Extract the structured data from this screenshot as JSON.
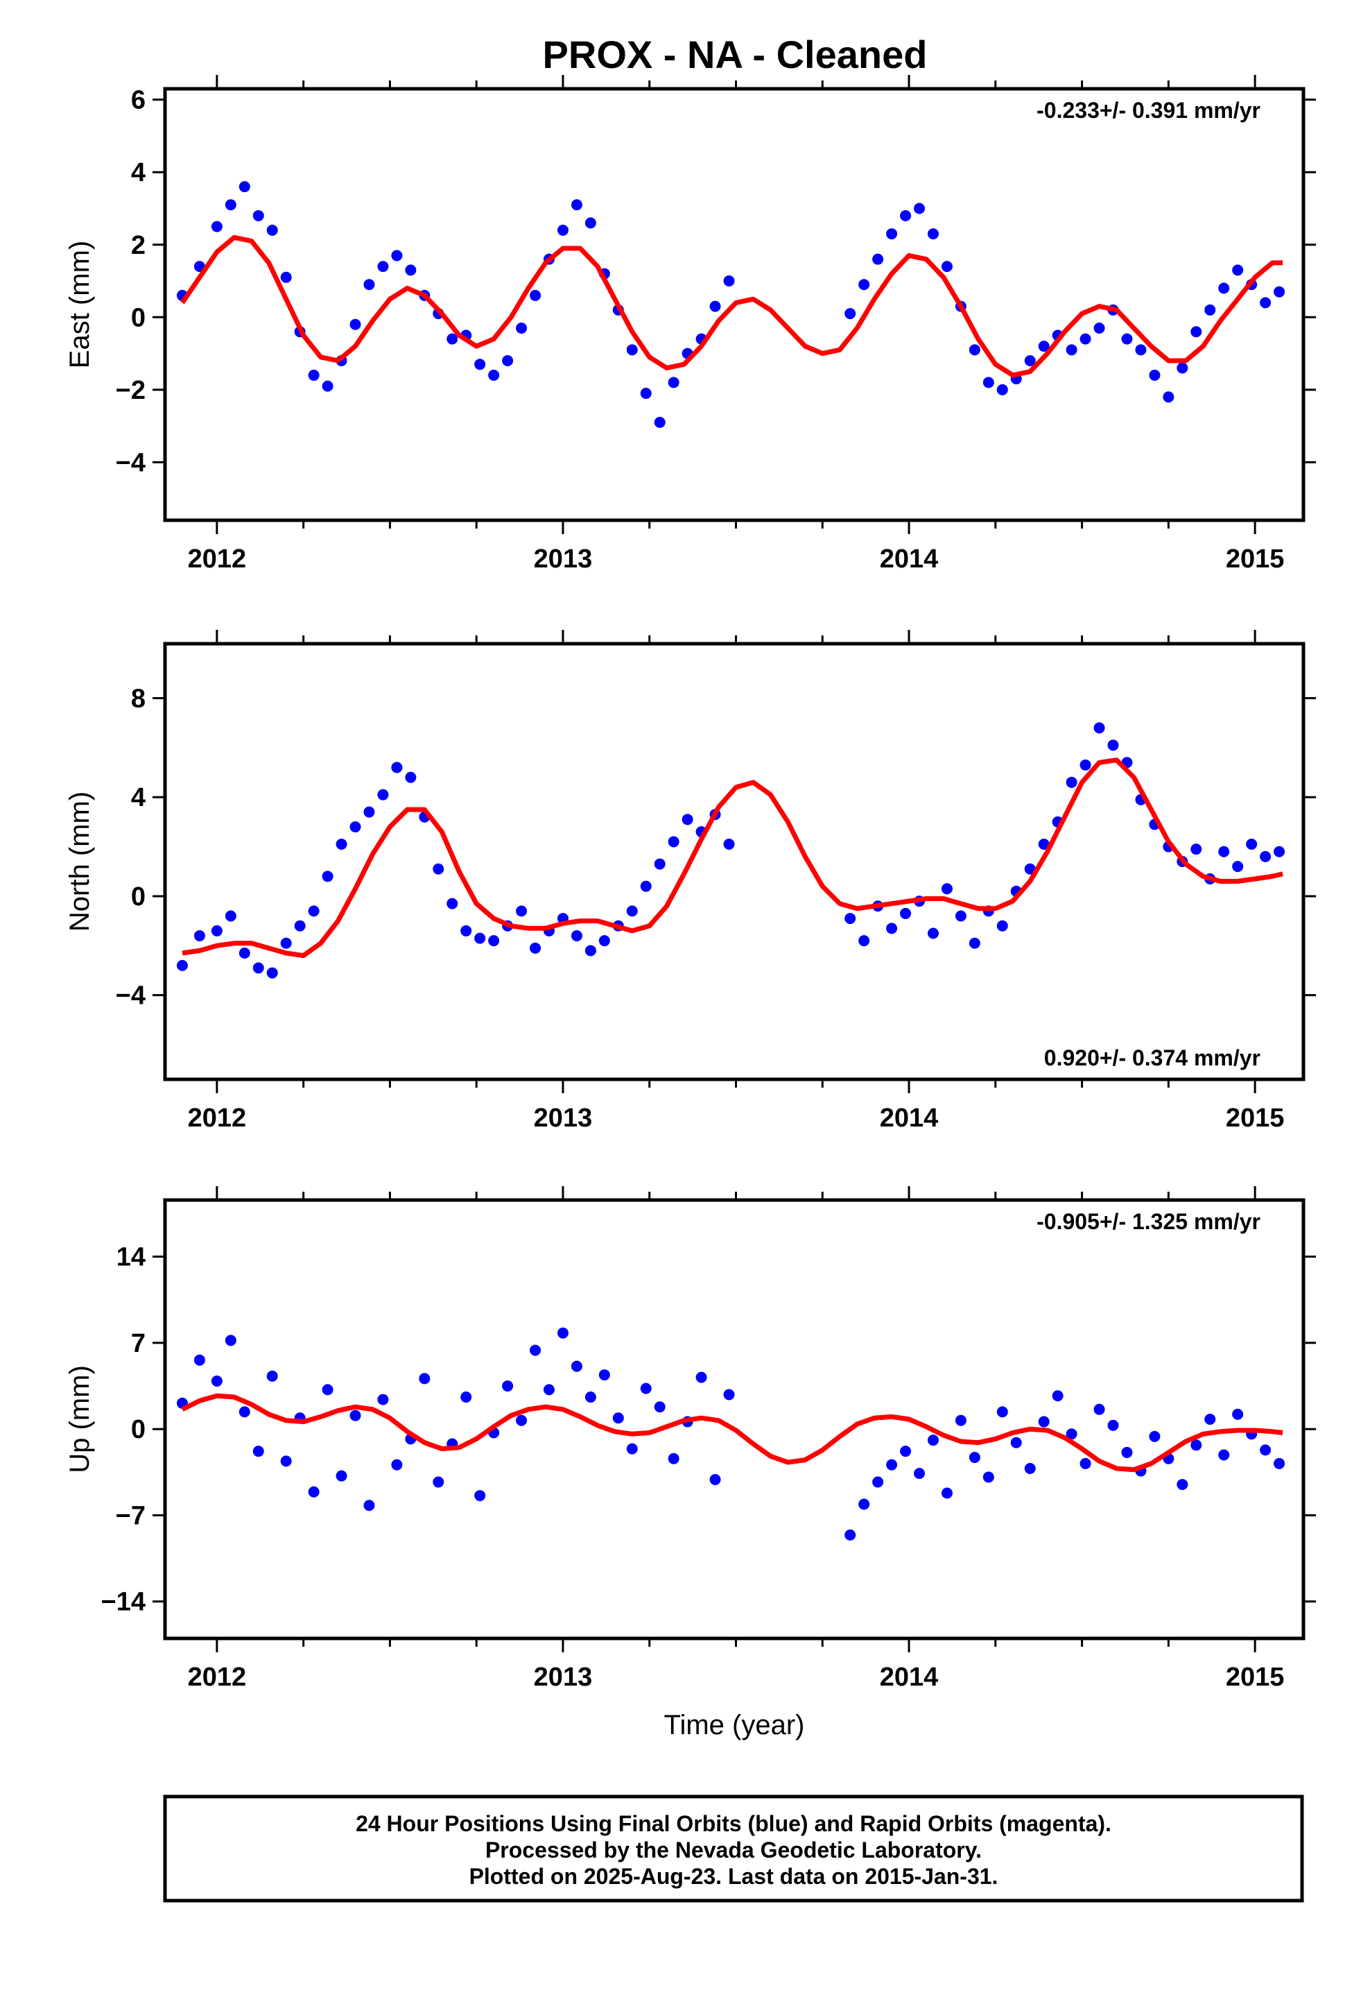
{
  "title": "PROX  - NA - Cleaned",
  "footer": {
    "line1": "24 Hour Positions Using Final Orbits (blue) and Rapid Orbits (magenta).",
    "line2": "Processed by the Nevada Geodetic Laboratory.",
    "line3": "Plotted on 2025-Aug-23. Last data on 2015-Jan-31."
  },
  "colors": {
    "points": "#0000ff",
    "fit": "#ff0000",
    "frame": "#000000"
  },
  "chart_data": [
    {
      "type": "scatter",
      "ylabel": "East (mm)",
      "xlabel": "",
      "rate": "-0.233+/- 0.391 mm/yr",
      "rate_position": "top-right",
      "xlim": [
        2011.85,
        2015.14
      ],
      "ylim": [
        -5.6,
        6.3
      ],
      "xticks": [
        2012,
        2013,
        2014,
        2015
      ],
      "yticks": [
        -4,
        -2,
        0,
        2,
        4,
        6
      ],
      "series": [
        {
          "kind": "points",
          "x": [
            2011.9,
            2011.95,
            2012.0,
            2012.04,
            2012.08,
            2012.12,
            2012.16,
            2012.2,
            2012.24,
            2012.28,
            2012.32,
            2012.36,
            2012.4,
            2012.44,
            2012.48,
            2012.52,
            2012.56,
            2012.6,
            2012.64,
            2012.68,
            2012.72,
            2012.76,
            2012.8,
            2012.84,
            2012.88,
            2012.92,
            2012.96,
            2013.0,
            2013.04,
            2013.08,
            2013.12,
            2013.16,
            2013.2,
            2013.24,
            2013.28,
            2013.32,
            2013.36,
            2013.4,
            2013.44,
            2013.48,
            2013.83,
            2013.87,
            2013.91,
            2013.95,
            2013.99,
            2014.03,
            2014.07,
            2014.11,
            2014.15,
            2014.19,
            2014.23,
            2014.27,
            2014.31,
            2014.35,
            2014.39,
            2014.43,
            2014.47,
            2014.51,
            2014.55,
            2014.59,
            2014.63,
            2014.67,
            2014.71,
            2014.75,
            2014.79,
            2014.83,
            2014.87,
            2014.91,
            2014.95,
            2014.99,
            2015.03,
            2015.07
          ],
          "y": [
            0.6,
            1.4,
            2.5,
            3.1,
            3.6,
            2.8,
            2.4,
            1.1,
            -0.4,
            -1.6,
            -1.9,
            -1.2,
            -0.2,
            0.9,
            1.4,
            1.7,
            1.3,
            0.6,
            0.1,
            -0.6,
            -0.5,
            -1.3,
            -1.6,
            -1.2,
            -0.3,
            0.6,
            1.6,
            2.4,
            3.1,
            2.6,
            1.2,
            0.2,
            -0.9,
            -2.1,
            -2.9,
            -1.8,
            -1.0,
            -0.6,
            0.3,
            1.0,
            0.1,
            0.9,
            1.6,
            2.3,
            2.8,
            3.0,
            2.3,
            1.4,
            0.3,
            -0.9,
            -1.8,
            -2.0,
            -1.7,
            -1.2,
            -0.8,
            -0.5,
            -0.9,
            -0.6,
            -0.3,
            0.2,
            -0.6,
            -0.9,
            -1.6,
            -2.2,
            -1.4,
            -0.4,
            0.2,
            0.8,
            1.3,
            0.9,
            0.4,
            0.7
          ]
        },
        {
          "kind": "fit",
          "x": [
            2011.9,
            2011.95,
            2012.0,
            2012.05,
            2012.1,
            2012.15,
            2012.2,
            2012.25,
            2012.3,
            2012.35,
            2012.4,
            2012.45,
            2012.5,
            2012.55,
            2012.6,
            2012.65,
            2012.7,
            2012.75,
            2012.8,
            2012.85,
            2012.9,
            2012.95,
            2013.0,
            2013.05,
            2013.1,
            2013.15,
            2013.2,
            2013.25,
            2013.3,
            2013.35,
            2013.4,
            2013.45,
            2013.5,
            2013.55,
            2013.6,
            2013.65,
            2013.7,
            2013.75,
            2013.8,
            2013.85,
            2013.9,
            2013.95,
            2014.0,
            2014.05,
            2014.1,
            2014.15,
            2014.2,
            2014.25,
            2014.3,
            2014.35,
            2014.4,
            2014.45,
            2014.5,
            2014.55,
            2014.6,
            2014.65,
            2014.7,
            2014.75,
            2014.8,
            2014.85,
            2014.9,
            2014.95,
            2015.0,
            2015.05,
            2015.08
          ],
          "y": [
            0.4,
            1.1,
            1.8,
            2.2,
            2.1,
            1.5,
            0.5,
            -0.5,
            -1.1,
            -1.2,
            -0.8,
            -0.1,
            0.5,
            0.8,
            0.6,
            0.1,
            -0.5,
            -0.8,
            -0.6,
            0.0,
            0.8,
            1.5,
            1.9,
            1.9,
            1.4,
            0.5,
            -0.4,
            -1.1,
            -1.4,
            -1.3,
            -0.8,
            -0.1,
            0.4,
            0.5,
            0.2,
            -0.3,
            -0.8,
            -1.0,
            -0.9,
            -0.3,
            0.5,
            1.2,
            1.7,
            1.6,
            1.1,
            0.3,
            -0.6,
            -1.3,
            -1.6,
            -1.5,
            -1.0,
            -0.4,
            0.1,
            0.3,
            0.2,
            -0.3,
            -0.8,
            -1.2,
            -1.2,
            -0.8,
            -0.1,
            0.5,
            1.1,
            1.5,
            1.5
          ]
        }
      ]
    },
    {
      "type": "scatter",
      "ylabel": "North (mm)",
      "xlabel": "",
      "rate": "0.920+/- 0.374 mm/yr",
      "rate_position": "bottom-right",
      "xlim": [
        2011.85,
        2015.14
      ],
      "ylim": [
        -7.4,
        10.2
      ],
      "xticks": [
        2012,
        2013,
        2014,
        2015
      ],
      "yticks": [
        -4,
        0,
        4,
        8
      ],
      "series": [
        {
          "kind": "points",
          "x": [
            2011.9,
            2011.95,
            2012.0,
            2012.04,
            2012.08,
            2012.12,
            2012.16,
            2012.2,
            2012.24,
            2012.28,
            2012.32,
            2012.36,
            2012.4,
            2012.44,
            2012.48,
            2012.52,
            2012.56,
            2012.6,
            2012.64,
            2012.68,
            2012.72,
            2012.76,
            2012.8,
            2012.84,
            2012.88,
            2012.92,
            2012.96,
            2013.0,
            2013.04,
            2013.08,
            2013.12,
            2013.16,
            2013.2,
            2013.24,
            2013.28,
            2013.32,
            2013.36,
            2013.4,
            2013.44,
            2013.48,
            2013.83,
            2013.87,
            2013.91,
            2013.95,
            2013.99,
            2014.03,
            2014.07,
            2014.11,
            2014.15,
            2014.19,
            2014.23,
            2014.27,
            2014.31,
            2014.35,
            2014.39,
            2014.43,
            2014.47,
            2014.51,
            2014.55,
            2014.59,
            2014.63,
            2014.67,
            2014.71,
            2014.75,
            2014.79,
            2014.83,
            2014.87,
            2014.91,
            2014.95,
            2014.99,
            2015.03,
            2015.07
          ],
          "y": [
            -2.8,
            -1.6,
            -1.4,
            -0.8,
            -2.3,
            -2.9,
            -3.1,
            -1.9,
            -1.2,
            -0.6,
            0.8,
            2.1,
            2.8,
            3.4,
            4.1,
            5.2,
            4.8,
            3.2,
            1.1,
            -0.3,
            -1.4,
            -1.7,
            -1.8,
            -1.2,
            -0.6,
            -2.1,
            -1.4,
            -0.9,
            -1.6,
            -2.2,
            -1.8,
            -1.2,
            -0.6,
            0.4,
            1.3,
            2.2,
            3.1,
            2.6,
            3.3,
            2.1,
            -0.9,
            -1.8,
            -0.4,
            -1.3,
            -0.7,
            -0.2,
            -1.5,
            0.3,
            -0.8,
            -1.9,
            -0.6,
            -1.2,
            0.2,
            1.1,
            2.1,
            3.0,
            4.6,
            5.3,
            6.8,
            6.1,
            5.4,
            3.9,
            2.9,
            2.0,
            1.4,
            1.9,
            0.7,
            1.8,
            1.2,
            2.1,
            1.6,
            1.8
          ]
        },
        {
          "kind": "fit",
          "x": [
            2011.9,
            2011.95,
            2012.0,
            2012.05,
            2012.1,
            2012.15,
            2012.2,
            2012.25,
            2012.3,
            2012.35,
            2012.4,
            2012.45,
            2012.5,
            2012.55,
            2012.6,
            2012.65,
            2012.7,
            2012.75,
            2012.8,
            2012.85,
            2012.9,
            2012.95,
            2013.0,
            2013.05,
            2013.1,
            2013.15,
            2013.2,
            2013.25,
            2013.3,
            2013.35,
            2013.4,
            2013.45,
            2013.5,
            2013.55,
            2013.6,
            2013.65,
            2013.7,
            2013.75,
            2013.8,
            2013.85,
            2013.9,
            2013.95,
            2014.0,
            2014.05,
            2014.1,
            2014.15,
            2014.2,
            2014.25,
            2014.3,
            2014.35,
            2014.4,
            2014.45,
            2014.5,
            2014.55,
            2014.6,
            2014.65,
            2014.7,
            2014.75,
            2014.8,
            2014.85,
            2014.9,
            2014.95,
            2015.0,
            2015.05,
            2015.08
          ],
          "y": [
            -2.3,
            -2.2,
            -2.0,
            -1.9,
            -1.9,
            -2.1,
            -2.3,
            -2.4,
            -1.9,
            -1.0,
            0.3,
            1.7,
            2.8,
            3.5,
            3.5,
            2.6,
            1.0,
            -0.3,
            -0.9,
            -1.2,
            -1.3,
            -1.3,
            -1.1,
            -1.0,
            -1.0,
            -1.2,
            -1.4,
            -1.2,
            -0.4,
            0.9,
            2.3,
            3.6,
            4.4,
            4.6,
            4.1,
            3.0,
            1.6,
            0.4,
            -0.3,
            -0.5,
            -0.4,
            -0.3,
            -0.2,
            -0.1,
            -0.1,
            -0.3,
            -0.5,
            -0.5,
            -0.2,
            0.6,
            1.8,
            3.2,
            4.6,
            5.4,
            5.5,
            4.8,
            3.5,
            2.2,
            1.3,
            0.8,
            0.6,
            0.6,
            0.7,
            0.8,
            0.9
          ]
        }
      ]
    },
    {
      "type": "scatter",
      "ylabel": "Up (mm)",
      "xlabel": "Time (year)",
      "rate": "-0.905+/- 1.325 mm/yr",
      "rate_position": "top-right",
      "xlim": [
        2011.85,
        2015.14
      ],
      "ylim": [
        -17.0,
        18.6
      ],
      "xticks": [
        2012,
        2013,
        2014,
        2015
      ],
      "yticks": [
        -14,
        -7,
        0,
        7,
        14
      ],
      "series": [
        {
          "kind": "points",
          "x": [
            2011.9,
            2011.95,
            2012.0,
            2012.04,
            2012.08,
            2012.12,
            2012.16,
            2012.2,
            2012.24,
            2012.28,
            2012.32,
            2012.36,
            2012.4,
            2012.44,
            2012.48,
            2012.52,
            2012.56,
            2012.6,
            2012.64,
            2012.68,
            2012.72,
            2012.76,
            2012.8,
            2012.84,
            2012.88,
            2012.92,
            2012.96,
            2013.0,
            2013.04,
            2013.08,
            2013.12,
            2013.16,
            2013.2,
            2013.24,
            2013.28,
            2013.32,
            2013.36,
            2013.4,
            2013.44,
            2013.48,
            2013.83,
            2013.87,
            2013.91,
            2013.95,
            2013.99,
            2014.03,
            2014.07,
            2014.11,
            2014.15,
            2014.19,
            2014.23,
            2014.27,
            2014.31,
            2014.35,
            2014.39,
            2014.43,
            2014.47,
            2014.51,
            2014.55,
            2014.59,
            2014.63,
            2014.67,
            2014.71,
            2014.75,
            2014.79,
            2014.83,
            2014.87,
            2014.91,
            2014.95,
            2014.99,
            2015.03,
            2015.07
          ],
          "y": [
            2.1,
            5.6,
            3.9,
            7.2,
            1.4,
            -1.8,
            4.3,
            -2.6,
            0.9,
            -5.1,
            3.2,
            -3.8,
            1.1,
            -6.2,
            2.4,
            -2.9,
            -0.8,
            4.1,
            -4.3,
            -1.2,
            2.6,
            -5.4,
            -0.3,
            3.5,
            0.7,
            6.4,
            3.2,
            7.8,
            5.1,
            2.6,
            4.4,
            0.9,
            -1.6,
            3.3,
            1.8,
            -2.4,
            0.6,
            4.2,
            -4.1,
            2.8,
            -8.6,
            -6.1,
            -4.3,
            -2.9,
            -1.8,
            -3.6,
            -0.9,
            -5.2,
            0.7,
            -2.3,
            -3.9,
            1.4,
            -1.1,
            -3.2,
            0.6,
            2.7,
            -0.4,
            -2.8,
            1.6,
            0.3,
            -1.9,
            -3.4,
            -0.6,
            -2.4,
            -4.5,
            -1.3,
            0.8,
            -2.1,
            1.2,
            -0.4,
            -1.7,
            -2.8
          ]
        },
        {
          "kind": "fit",
          "x": [
            2011.9,
            2011.95,
            2012.0,
            2012.05,
            2012.1,
            2012.15,
            2012.2,
            2012.25,
            2012.3,
            2012.35,
            2012.4,
            2012.45,
            2012.5,
            2012.55,
            2012.6,
            2012.65,
            2012.7,
            2012.75,
            2012.8,
            2012.85,
            2012.9,
            2012.95,
            2013.0,
            2013.05,
            2013.1,
            2013.15,
            2013.2,
            2013.25,
            2013.3,
            2013.35,
            2013.4,
            2013.45,
            2013.5,
            2013.55,
            2013.6,
            2013.65,
            2013.7,
            2013.75,
            2013.8,
            2013.85,
            2013.9,
            2013.95,
            2014.0,
            2014.05,
            2014.1,
            2014.15,
            2014.2,
            2014.25,
            2014.3,
            2014.35,
            2014.4,
            2014.45,
            2014.5,
            2014.55,
            2014.6,
            2014.65,
            2014.7,
            2014.75,
            2014.8,
            2014.85,
            2014.9,
            2014.95,
            2015.0,
            2015.05,
            2015.08
          ],
          "y": [
            1.6,
            2.3,
            2.7,
            2.6,
            2.0,
            1.2,
            0.7,
            0.6,
            1.0,
            1.5,
            1.8,
            1.6,
            0.9,
            -0.2,
            -1.1,
            -1.6,
            -1.5,
            -0.8,
            0.2,
            1.1,
            1.6,
            1.8,
            1.6,
            1.0,
            0.3,
            -0.2,
            -0.4,
            -0.3,
            0.2,
            0.7,
            0.9,
            0.7,
            -0.1,
            -1.2,
            -2.2,
            -2.7,
            -2.5,
            -1.7,
            -0.6,
            0.4,
            0.9,
            1.0,
            0.8,
            0.2,
            -0.5,
            -1.0,
            -1.1,
            -0.8,
            -0.3,
            0.0,
            -0.1,
            -0.7,
            -1.6,
            -2.6,
            -3.2,
            -3.3,
            -2.8,
            -1.9,
            -1.0,
            -0.4,
            -0.2,
            -0.1,
            -0.1,
            -0.2,
            -0.3
          ]
        }
      ]
    }
  ]
}
